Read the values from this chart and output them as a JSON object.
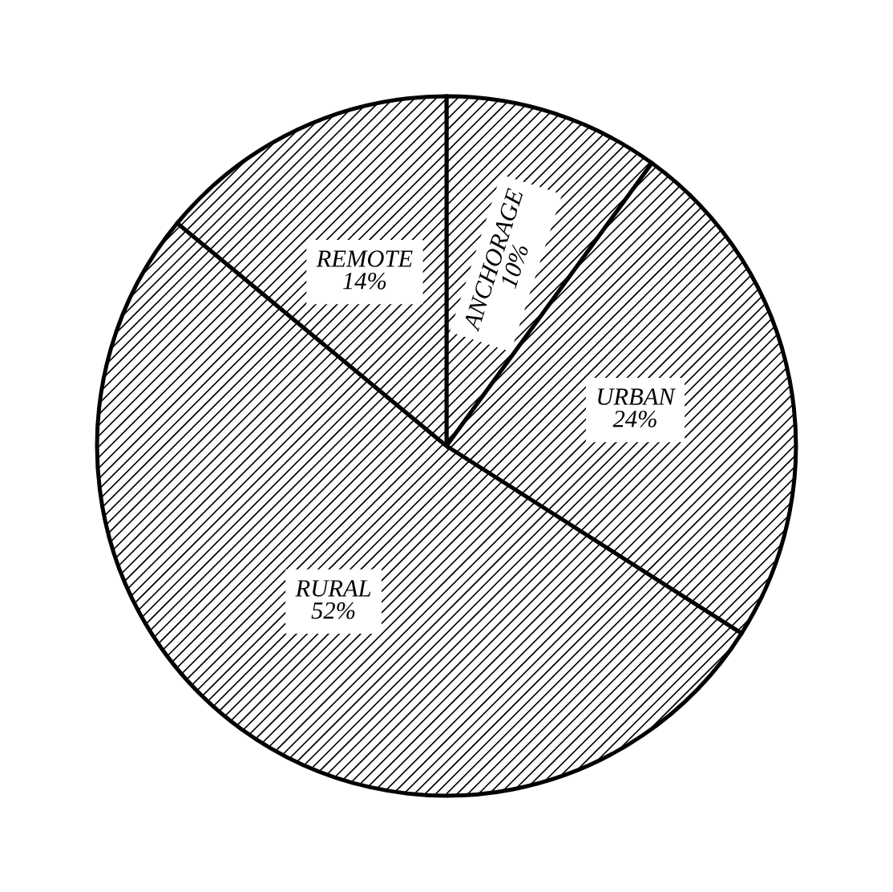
{
  "chart_data": {
    "type": "pie",
    "categories": [
      "ANCHORAGE",
      "URBAN",
      "RURAL",
      "REMOTE"
    ],
    "values": [
      10,
      24,
      52,
      14
    ],
    "value_labels": [
      "10%",
      "24%",
      "52%",
      "14%"
    ],
    "colors": [
      "#000000",
      "#000000",
      "#000000",
      "#000000"
    ]
  }
}
